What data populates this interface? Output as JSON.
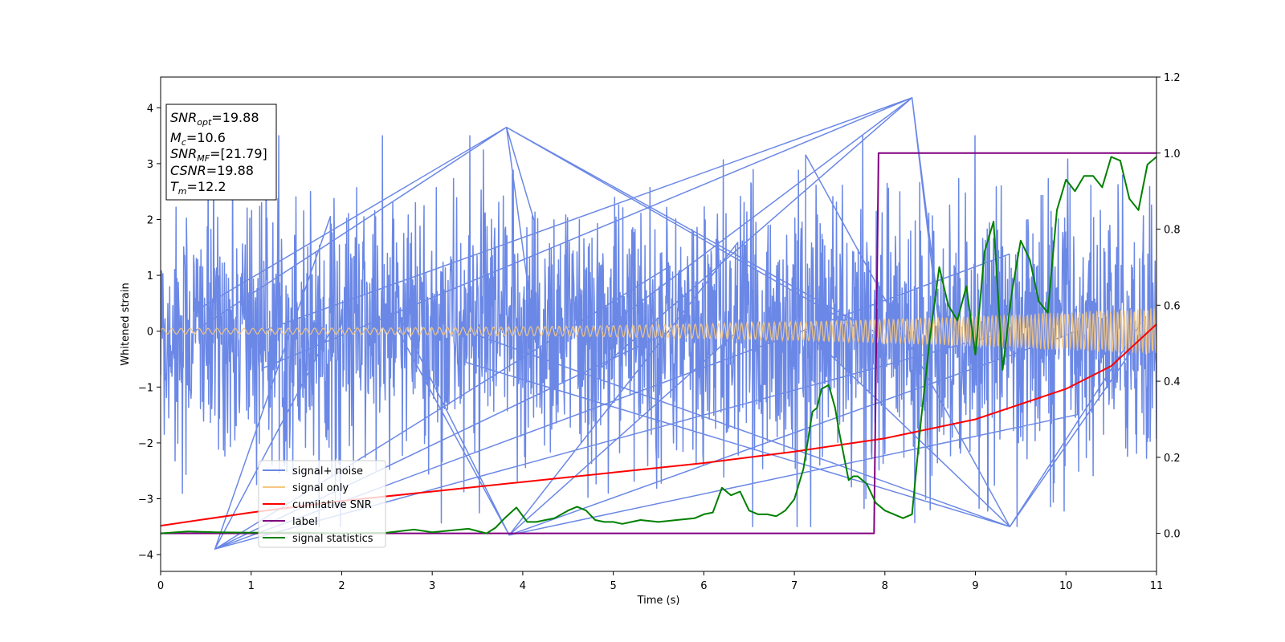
{
  "chart_data": {
    "type": "line",
    "title": "",
    "xlabel": "Time (s)",
    "ylabel": "Whitened strain",
    "y2label": "",
    "xlim": [
      0,
      11
    ],
    "ylim": [
      -4.3,
      4.55
    ],
    "y2lim": [
      -0.1,
      1.2
    ],
    "xticks": [
      0,
      1,
      2,
      3,
      4,
      5,
      6,
      7,
      8,
      9,
      10,
      11
    ],
    "yticks": [
      -4,
      -3,
      -2,
      -1,
      0,
      1,
      2,
      3,
      4
    ],
    "y2ticks": [
      0.0,
      0.2,
      0.4,
      0.6,
      0.8,
      1.0,
      1.2
    ],
    "grid": false,
    "legend_placement": "lower-left",
    "colors": {
      "signal_noise": "#6b88e6",
      "signal_only": "#f5c77e",
      "cumulative_snr": "#ff0000",
      "label": "#800080",
      "signal_statistics": "#008000"
    },
    "annotation": {
      "lines": [
        {
          "symbol": "SNR",
          "sub": "opt",
          "value": "=19.88"
        },
        {
          "symbol": "M",
          "sub": "c",
          "value": "=10.6"
        },
        {
          "symbol": "SNR",
          "sub": "MF",
          "value": "=[21.79]"
        },
        {
          "symbol": "CSNR",
          "sub": "",
          "value": "=19.88"
        },
        {
          "symbol": "T",
          "sub": "m",
          "value": "=12.2"
        }
      ]
    },
    "series": [
      {
        "name": "signal+ noise",
        "axis": "left",
        "style": "noise",
        "x_range": [
          0,
          11
        ],
        "envelope_typical": [
          -1.6,
          1.6
        ],
        "envelope_extreme": [
          -3.9,
          4.2
        ],
        "notable_peaks": [
          {
            "x": 3.82,
            "y": 3.65
          },
          {
            "x": 8.3,
            "y": 4.18
          },
          {
            "x": 0.6,
            "y": -3.9
          },
          {
            "x": 3.85,
            "y": -3.65
          },
          {
            "x": 9.38,
            "y": -3.5
          }
        ]
      },
      {
        "name": "signal only",
        "axis": "left",
        "style": "chirp",
        "x_range": [
          0,
          11
        ],
        "amplitude_start": 0.05,
        "amplitude_end": 0.42
      },
      {
        "name": "cumilative SNR",
        "axis": "right",
        "x": [
          0,
          1,
          2,
          3,
          4,
          5,
          6,
          7,
          8,
          9,
          10,
          10.5,
          11
        ],
        "y": [
          0.02,
          0.055,
          0.085,
          0.11,
          0.135,
          0.16,
          0.185,
          0.215,
          0.25,
          0.3,
          0.38,
          0.44,
          0.55
        ]
      },
      {
        "name": "label",
        "axis": "right",
        "x": [
          0,
          7.88,
          7.93,
          11
        ],
        "y": [
          0.0,
          0.0,
          1.0,
          1.0
        ]
      },
      {
        "name": "signal statistics",
        "axis": "right",
        "x": [
          0,
          0.3,
          0.6,
          1,
          1.5,
          2,
          2.5,
          2.8,
          3,
          3.4,
          3.6,
          3.7,
          3.8,
          3.93,
          4.05,
          4.15,
          4.25,
          4.35,
          4.5,
          4.6,
          4.7,
          4.8,
          4.9,
          5.0,
          5.1,
          5.2,
          5.3,
          5.5,
          5.7,
          5.9,
          6.0,
          6.1,
          6.2,
          6.25,
          6.3,
          6.4,
          6.5,
          6.6,
          6.7,
          6.8,
          6.9,
          7.0,
          7.1,
          7.2,
          7.25,
          7.3,
          7.38,
          7.45,
          7.5,
          7.6,
          7.65,
          7.7,
          7.8,
          7.9,
          8.0,
          8.1,
          8.2,
          8.3,
          8.4,
          8.5,
          8.6,
          8.7,
          8.8,
          8.9,
          9.0,
          9.1,
          9.2,
          9.3,
          9.4,
          9.5,
          9.6,
          9.7,
          9.8,
          9.9,
          10.0,
          10.1,
          10.2,
          10.3,
          10.4,
          10.5,
          10.6,
          10.7,
          10.8,
          10.9,
          11.0
        ],
        "y": [
          0.0,
          0.005,
          0.003,
          0.002,
          0.002,
          0.0,
          0.002,
          0.01,
          0.003,
          0.012,
          0.0,
          0.015,
          0.04,
          0.068,
          0.03,
          0.03,
          0.035,
          0.04,
          0.06,
          0.07,
          0.06,
          0.035,
          0.03,
          0.03,
          0.025,
          0.03,
          0.035,
          0.03,
          0.035,
          0.04,
          0.05,
          0.055,
          0.12,
          0.11,
          0.1,
          0.11,
          0.06,
          0.05,
          0.05,
          0.045,
          0.06,
          0.09,
          0.17,
          0.32,
          0.33,
          0.38,
          0.39,
          0.33,
          0.26,
          0.14,
          0.15,
          0.15,
          0.13,
          0.08,
          0.06,
          0.05,
          0.04,
          0.05,
          0.3,
          0.52,
          0.7,
          0.6,
          0.56,
          0.65,
          0.47,
          0.74,
          0.82,
          0.43,
          0.63,
          0.77,
          0.72,
          0.61,
          0.58,
          0.85,
          0.93,
          0.9,
          0.94,
          0.94,
          0.91,
          0.99,
          0.98,
          0.88,
          0.85,
          0.97,
          0.99
        ]
      }
    ]
  }
}
